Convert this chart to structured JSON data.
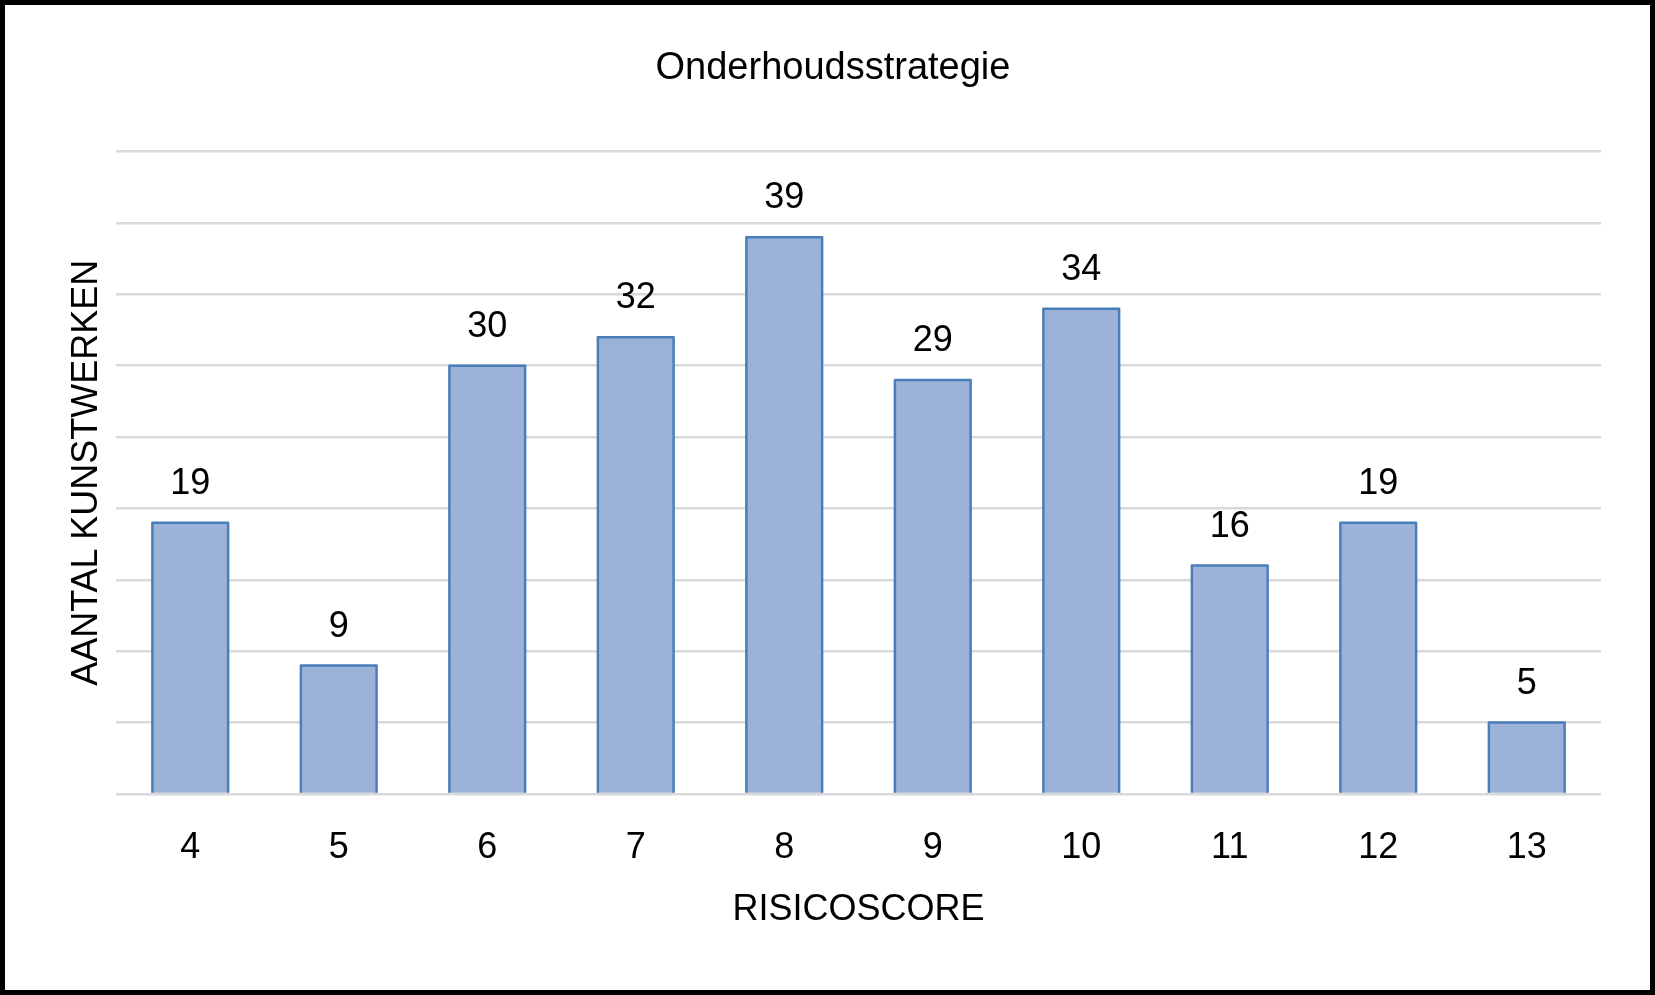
{
  "chart_data": {
    "type": "bar",
    "title": "Onderhoudsstrategie",
    "xlabel": "RISICOSCORE",
    "ylabel": "AANTAL KUNSTWERKEN",
    "categories": [
      "4",
      "5",
      "6",
      "7",
      "8",
      "9",
      "10",
      "11",
      "12",
      "13"
    ],
    "values": [
      19,
      9,
      30,
      32,
      39,
      29,
      34,
      16,
      19,
      5
    ],
    "color": "#9db2d8",
    "ylim": [
      0,
      45
    ],
    "yticks": [
      {
        "value": 0,
        "label": null
      },
      {
        "value": 5,
        "label": null
      },
      {
        "value": 10,
        "label": null
      },
      {
        "value": 15,
        "label": null
      },
      {
        "value": 20,
        "label": null
      },
      {
        "value": 25,
        "label": null
      },
      {
        "value": 30,
        "label": null
      },
      {
        "value": 35,
        "label": null
      },
      {
        "value": 40,
        "label": null
      },
      {
        "value": 45,
        "label": null
      }
    ],
    "grid": "y",
    "tick_labels": "x",
    "data_labels": true
  }
}
